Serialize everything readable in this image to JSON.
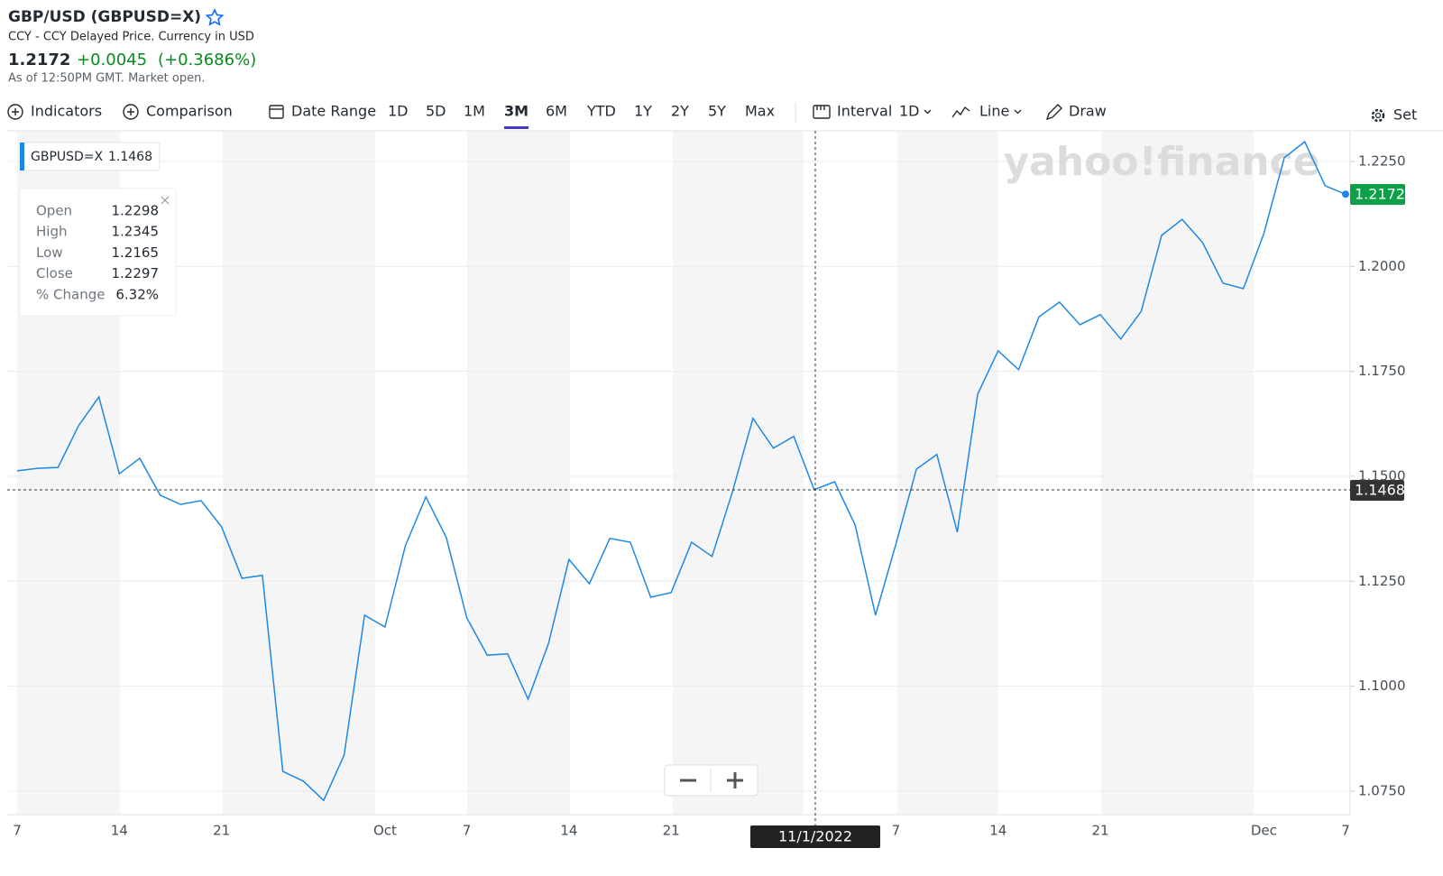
{
  "header": {
    "title": "GBP/USD (GBPUSD=X)",
    "subtitle": "CCY - CCY Delayed Price. Currency in USD",
    "price": "1.2172",
    "change": "+0.0045",
    "change_percent": "(+0.3686%)",
    "as_of": "As of 12:50PM GMT. Market open."
  },
  "toolbar": {
    "indicators": "Indicators",
    "comparison": "Comparison",
    "date_range": "Date Range",
    "ranges": [
      "1D",
      "5D",
      "1M",
      "3M",
      "6M",
      "YTD",
      "1Y",
      "2Y",
      "5Y",
      "Max"
    ],
    "active_range": "3M",
    "interval": "Interval",
    "interval_value": "1D",
    "chart_style": "Line",
    "draw": "Draw",
    "settings": "Set"
  },
  "chart_data": {
    "type": "line",
    "watermark": "yahoo!finance",
    "legend": {
      "symbol": "GBPUSD=X",
      "value": "1.1468"
    },
    "tooltip": {
      "rows": [
        {
          "label": "Open",
          "value": "1.2298"
        },
        {
          "label": "High",
          "value": "1.2345"
        },
        {
          "label": "Low",
          "value": "1.2165"
        },
        {
          "label": "Close",
          "value": "1.2297"
        },
        {
          "label": "% Change",
          "value": "6.32%"
        }
      ]
    },
    "crosshair": {
      "y_label": "1.1468",
      "x_label": "11/1/2022"
    },
    "last_price_label": "1.2172",
    "categories": [
      "7",
      null,
      null,
      null,
      null,
      "14",
      null,
      null,
      null,
      null,
      "21",
      null,
      null,
      null,
      null,
      null,
      null,
      null,
      "Oct",
      null,
      null,
      null,
      "7",
      null,
      null,
      null,
      null,
      "14",
      null,
      null,
      null,
      null,
      "21",
      null,
      null,
      null,
      null,
      null,
      null,
      null,
      null,
      null,
      null,
      "7",
      null,
      null,
      null,
      null,
      "14",
      null,
      null,
      null,
      null,
      "21",
      null,
      null,
      null,
      null,
      null,
      null,
      null,
      "Dec",
      null,
      null,
      null,
      "7"
    ],
    "series": [
      {
        "name": "GBPUSD=X",
        "color": "#1e88e5",
        "values": [
          1.1513,
          1.1519,
          1.1521,
          1.162,
          1.1689,
          1.1506,
          1.1543,
          1.1455,
          1.1433,
          1.1442,
          1.138,
          1.1257,
          1.1264,
          1.0797,
          1.0774,
          1.0728,
          1.0836,
          1.1169,
          1.1141,
          1.1335,
          1.1451,
          1.1354,
          1.1163,
          1.1074,
          1.1077,
          1.0969,
          1.1102,
          1.1302,
          1.1244,
          1.1352,
          1.1343,
          1.1212,
          1.1223,
          1.1343,
          1.1309,
          1.1463,
          1.1638,
          1.1567,
          1.1595,
          1.1468,
          1.1487,
          1.1384,
          1.1169,
          1.1339,
          1.1517,
          1.1552,
          1.1367,
          1.1696,
          1.1799,
          1.1754,
          1.188,
          1.1915,
          1.1861,
          1.1885,
          1.1827,
          1.1893,
          1.2074,
          1.2112,
          1.2057,
          1.196,
          1.1947,
          1.2078,
          1.2259,
          1.2297,
          1.2192,
          1.2172
        ]
      }
    ],
    "ylim": [
      1.0694,
      1.2323
    ],
    "yticks": [
      {
        "value": 1.075,
        "label": "1.0750"
      },
      {
        "value": 1.1,
        "label": "1.1000"
      },
      {
        "value": 1.125,
        "label": "1.1250"
      },
      {
        "value": 1.15,
        "label": "1.1500"
      },
      {
        "value": 1.175,
        "label": "1.1750"
      },
      {
        "value": 1.2,
        "label": "1.2000"
      },
      {
        "value": 1.225,
        "label": "1.2250"
      }
    ],
    "grid": true
  }
}
